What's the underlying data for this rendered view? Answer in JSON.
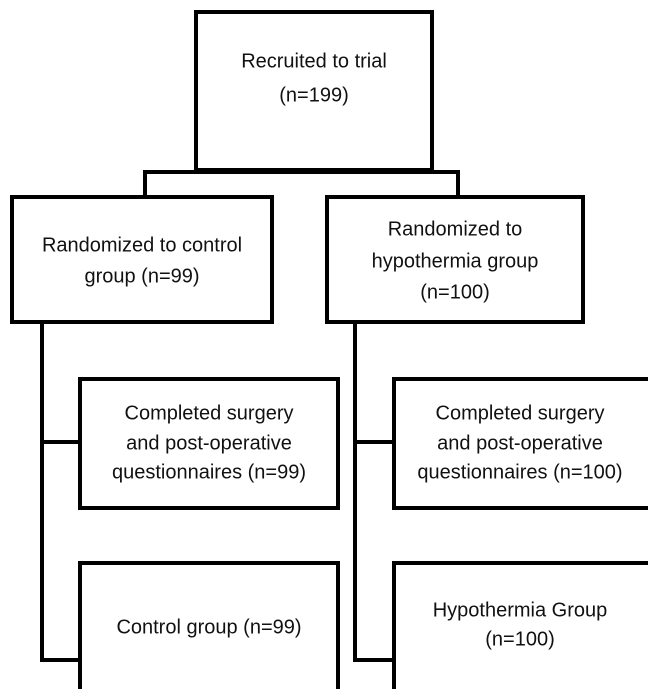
{
  "nodes": [
    {
      "lines": [
        "Recruited to trial",
        "(n=199)"
      ]
    },
    {
      "lines": [
        "Randomized to control",
        "group (n=99)"
      ]
    },
    {
      "lines": [
        "Randomized to",
        "hypothermia group",
        "(n=100)"
      ]
    },
    {
      "lines": [
        "Completed surgery",
        "and post-operative",
        "questionnaires (n=99)"
      ]
    },
    {
      "lines": [
        "Control group (n=99)"
      ]
    },
    {
      "lines": [
        "Completed surgery",
        "and post-operative",
        "questionnaires (n=100)"
      ]
    },
    {
      "lines": [
        "Hypothermia Group",
        "(n=100)"
      ]
    }
  ]
}
